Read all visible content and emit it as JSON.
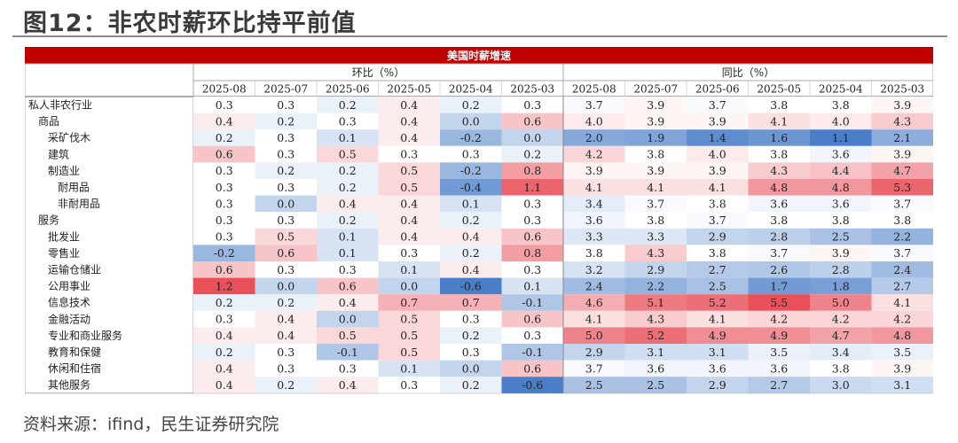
{
  "header": {
    "title": "图12：非农时薪环比持平前值"
  },
  "footer": {
    "source": "资料来源：ifind，民生证券研究院"
  },
  "chart_data": {
    "type": "heatmap",
    "title": "美国时薪增速",
    "groups": [
      "环比（%）",
      "同比（%）"
    ],
    "columns": [
      "2025-08",
      "2025-07",
      "2025-06",
      "2025-05",
      "2025-04",
      "2025-03"
    ],
    "rows": [
      {
        "label": "私人非农行业",
        "indent": 0,
        "mom": [
          0.3,
          0.3,
          0.2,
          0.4,
          0.2,
          0.3
        ],
        "yoy": [
          3.7,
          3.9,
          3.7,
          3.8,
          3.8,
          3.9
        ]
      },
      {
        "label": "商品",
        "indent": 1,
        "mom": [
          0.4,
          0.2,
          0.3,
          0.4,
          0.0,
          0.6
        ],
        "yoy": [
          4.0,
          3.9,
          3.9,
          4.1,
          4.0,
          4.3
        ]
      },
      {
        "label": "采矿伐木",
        "indent": 2,
        "mom": [
          0.2,
          0.3,
          0.1,
          0.4,
          -0.2,
          0.0
        ],
        "yoy": [
          2.0,
          1.9,
          1.4,
          1.6,
          1.1,
          2.1
        ]
      },
      {
        "label": "建筑",
        "indent": 2,
        "mom": [
          0.6,
          0.3,
          0.5,
          0.3,
          0.3,
          0.2
        ],
        "yoy": [
          4.2,
          3.8,
          4.0,
          3.8,
          3.6,
          3.9
        ]
      },
      {
        "label": "制造业",
        "indent": 2,
        "mom": [
          0.3,
          0.2,
          0.2,
          0.5,
          -0.2,
          0.8
        ],
        "yoy": [
          3.9,
          3.9,
          3.9,
          4.3,
          4.4,
          4.7
        ]
      },
      {
        "label": "耐用品",
        "indent": 3,
        "mom": [
          0.3,
          0.3,
          0.2,
          0.5,
          -0.4,
          1.1
        ],
        "yoy": [
          4.1,
          4.1,
          4.1,
          4.8,
          4.8,
          5.3
        ]
      },
      {
        "label": "非耐用品",
        "indent": 3,
        "mom": [
          0.3,
          0.0,
          0.4,
          0.4,
          0.1,
          0.3
        ],
        "yoy": [
          3.4,
          3.7,
          3.8,
          3.6,
          3.6,
          3.7
        ]
      },
      {
        "label": "服务",
        "indent": 1,
        "mom": [
          0.3,
          0.3,
          0.2,
          0.4,
          0.2,
          0.3
        ],
        "yoy": [
          3.6,
          3.8,
          3.7,
          3.8,
          3.8,
          3.8
        ]
      },
      {
        "label": "批发业",
        "indent": 2,
        "mom": [
          0.3,
          0.5,
          0.1,
          0.4,
          0.4,
          0.6
        ],
        "yoy": [
          3.3,
          3.3,
          2.9,
          2.8,
          2.5,
          2.2
        ]
      },
      {
        "label": "零售业",
        "indent": 2,
        "mom": [
          -0.2,
          0.6,
          0.1,
          0.3,
          0.2,
          0.8
        ],
        "yoy": [
          3.8,
          4.3,
          3.8,
          3.7,
          3.9,
          3.7
        ]
      },
      {
        "label": "运输仓储业",
        "indent": 2,
        "mom": [
          0.6,
          0.3,
          0.3,
          0.1,
          0.4,
          0.3
        ],
        "yoy": [
          3.2,
          2.9,
          2.7,
          2.6,
          2.8,
          2.4
        ]
      },
      {
        "label": "公用事业",
        "indent": 2,
        "mom": [
          1.2,
          0.0,
          0.6,
          0.0,
          -0.6,
          0.1
        ],
        "yoy": [
          2.4,
          2.2,
          2.5,
          1.7,
          1.8,
          2.7
        ]
      },
      {
        "label": "信息技术",
        "indent": 2,
        "mom": [
          0.2,
          0.2,
          0.4,
          0.7,
          0.7,
          -0.1
        ],
        "yoy": [
          4.6,
          5.1,
          5.2,
          5.5,
          5.0,
          4.1
        ]
      },
      {
        "label": "金融活动",
        "indent": 2,
        "mom": [
          0.3,
          0.4,
          0.0,
          0.5,
          0.3,
          0.6
        ],
        "yoy": [
          4.1,
          4.3,
          4.1,
          4.2,
          4.2,
          4.2
        ]
      },
      {
        "label": "专业和商业服务",
        "indent": 2,
        "mom": [
          0.4,
          0.4,
          0.5,
          0.5,
          0.2,
          0.3
        ],
        "yoy": [
          5.0,
          5.2,
          4.9,
          4.9,
          4.7,
          4.8
        ]
      },
      {
        "label": "教育和保健",
        "indent": 2,
        "mom": [
          0.2,
          0.3,
          -0.1,
          0.5,
          0.3,
          -0.1
        ],
        "yoy": [
          2.9,
          3.1,
          3.1,
          3.5,
          3.4,
          3.5
        ]
      },
      {
        "label": "休闲和住宿",
        "indent": 2,
        "mom": [
          0.4,
          0.3,
          0.3,
          0.1,
          0.0,
          0.6
        ],
        "yoy": [
          3.7,
          3.6,
          3.6,
          3.6,
          3.8,
          3.9
        ]
      },
      {
        "label": "其他服务",
        "indent": 2,
        "mom": [
          0.4,
          0.2,
          0.4,
          0.3,
          0.2,
          -0.6
        ],
        "yoy": [
          2.5,
          2.5,
          2.9,
          2.7,
          3.0,
          3.1
        ]
      }
    ],
    "color_scale": {
      "low": "#4a7ec8",
      "mid": "#ffffff",
      "high": "#e8505a"
    },
    "colors": {
      "banner": "#c00000",
      "banner_text": "#ffffff",
      "cell_text": "#222222"
    }
  }
}
